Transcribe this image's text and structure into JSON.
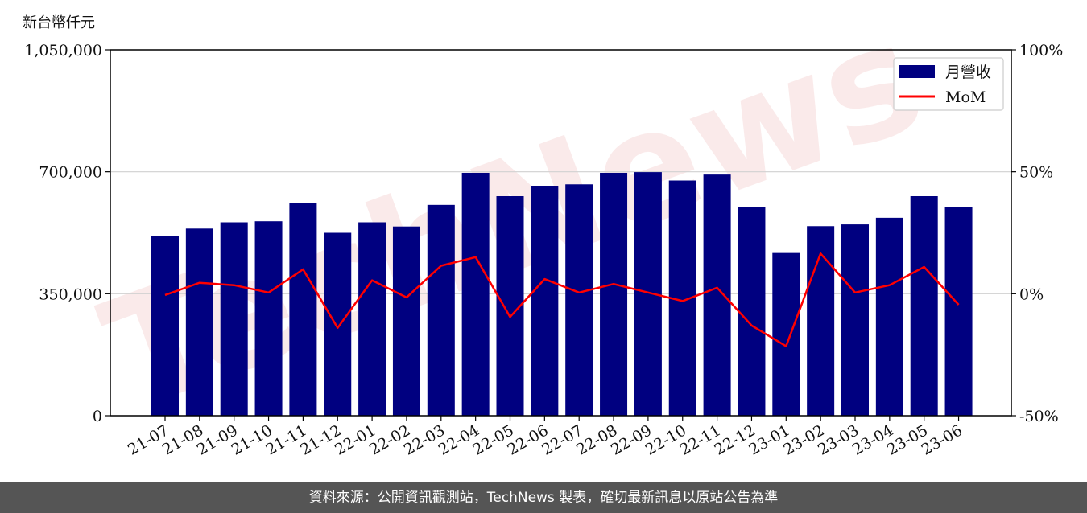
{
  "watermark": "TechNews",
  "footer_text": "資料來源：公開資訊觀測站，TechNews 製表，確切最新訊息以原站公告為準",
  "chart_data": {
    "type": "bar",
    "ylabel": "新台幣仟元",
    "categories": [
      "21-07",
      "21-08",
      "21-09",
      "21-10",
      "21-11",
      "21-12",
      "22-01",
      "22-02",
      "22-03",
      "22-04",
      "22-05",
      "22-06",
      "22-07",
      "22-08",
      "22-09",
      "22-10",
      "22-11",
      "22-12",
      "23-01",
      "23-02",
      "23-03",
      "23-04",
      "23-05",
      "23-06"
    ],
    "series": [
      {
        "name": "月營收",
        "type": "bar",
        "axis": "left",
        "color": "#000080",
        "values": [
          515000,
          537000,
          555000,
          558000,
          610000,
          525000,
          555000,
          543000,
          605000,
          697000,
          630000,
          660000,
          664000,
          697000,
          699000,
          675000,
          692000,
          600000,
          467000,
          544000,
          549000,
          568000,
          630000,
          600000
        ]
      },
      {
        "name": "MoM",
        "type": "line",
        "axis": "right",
        "color": "#ff0000",
        "values": [
          -0.5,
          4.5,
          3.5,
          0.5,
          10.0,
          -14.0,
          5.5,
          -1.5,
          11.5,
          15.0,
          -9.5,
          6.0,
          0.5,
          4.0,
          0.5,
          -3.0,
          2.5,
          -13.0,
          -21.5,
          16.5,
          0.5,
          3.5,
          11.0,
          -4.5
        ]
      }
    ],
    "ylim": [
      0,
      1050000
    ],
    "yticks": [
      "0",
      "350,000",
      "700,000",
      "1,050,000"
    ],
    "y2lim": [
      -50,
      100
    ],
    "y2ticks": [
      "-50%",
      "0%",
      "50%",
      "100%"
    ],
    "grid": "horizontal",
    "legend_position": "top-right"
  }
}
